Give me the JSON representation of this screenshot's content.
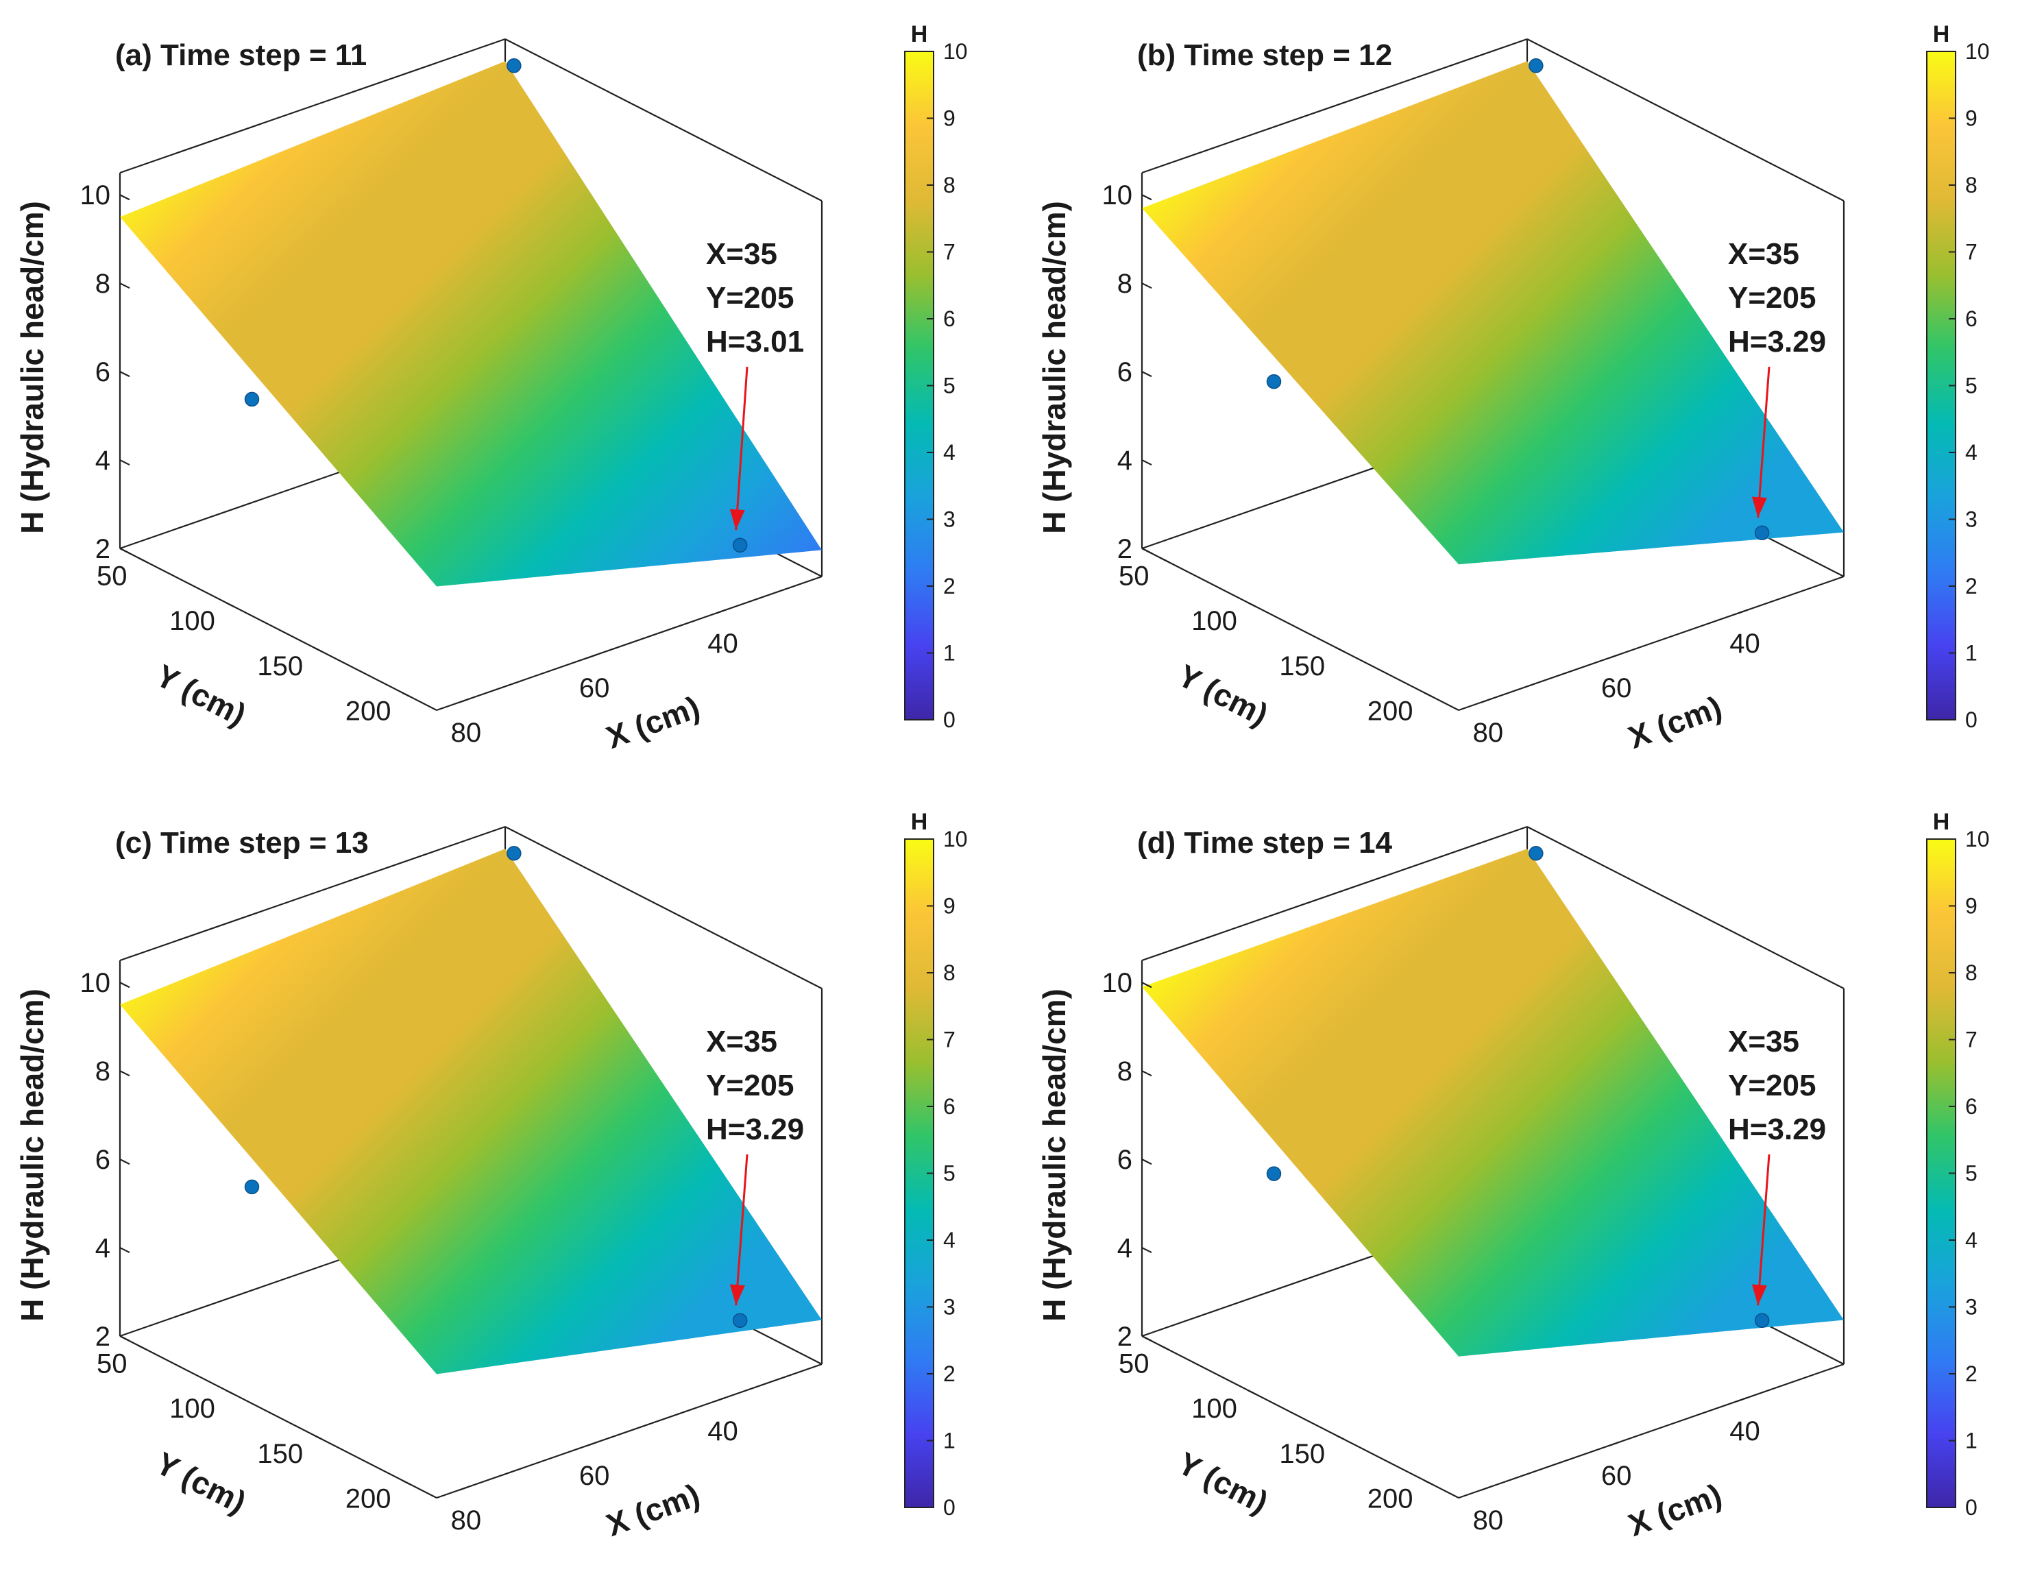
{
  "figure": {
    "colorbar_title": "H",
    "colormap": [
      "#3e26a8",
      "#4743f0",
      "#2f7cf3",
      "#1aa2dc",
      "#04bab3",
      "#31c569",
      "#9bbf2f",
      "#e0b936",
      "#fbc538",
      "#f9fb15"
    ],
    "surface_color_low": "#2aa0f0",
    "marker_color": "#0a72bd",
    "arrow_color": "#e8141c"
  },
  "chart_data": [
    {
      "type": "surface3d",
      "title": "(a) Time step = 11",
      "xlabel": "X (cm)",
      "ylabel": "Y (cm)",
      "zlabel": "H (Hydraulic head/cm)",
      "xlim": [
        25,
        85
      ],
      "ylim": [
        35,
        215
      ],
      "zlim": [
        2,
        10.5
      ],
      "x_ticks": [
        "40",
        "60",
        "80"
      ],
      "y_ticks": [
        "50",
        "100",
        "150",
        "200"
      ],
      "z_ticks": [
        "2",
        "4",
        "6",
        "8",
        "10"
      ],
      "colorbar": {
        "label": "H",
        "range": [
          0,
          10
        ],
        "ticks": [
          "0",
          "1",
          "2",
          "3",
          "4",
          "5",
          "6",
          "7",
          "8",
          "9",
          "10"
        ]
      },
      "surface_corners": [
        {
          "x": 85,
          "y": 35,
          "h": 9.5
        },
        {
          "x": 25,
          "y": 35,
          "h": 10.0
        },
        {
          "x": 25,
          "y": 215,
          "h": 2.6
        },
        {
          "x": 85,
          "y": 215,
          "h": 4.8
        }
      ],
      "points": [
        {
          "x": 25,
          "y": 40,
          "h": 10.0
        },
        {
          "x": 85,
          "y": 110,
          "h": 6.9
        },
        {
          "x": 35,
          "y": 205,
          "h": 3.01
        }
      ],
      "annotation": {
        "lines": [
          "X=35",
          "Y=205",
          "H=3.01"
        ],
        "x": 35,
        "y": 205,
        "h": 3.01
      }
    },
    {
      "type": "surface3d",
      "title": "(b) Time step = 12",
      "xlabel": "X (cm)",
      "ylabel": "Y (cm)",
      "zlabel": "H (Hydraulic head/cm)",
      "xlim": [
        25,
        85
      ],
      "ylim": [
        35,
        215
      ],
      "zlim": [
        2,
        10.5
      ],
      "x_ticks": [
        "40",
        "60",
        "80"
      ],
      "y_ticks": [
        "50",
        "100",
        "150",
        "200"
      ],
      "z_ticks": [
        "2",
        "4",
        "6",
        "8",
        "10"
      ],
      "colorbar": {
        "label": "H",
        "range": [
          0,
          10
        ],
        "ticks": [
          "0",
          "1",
          "2",
          "3",
          "4",
          "5",
          "6",
          "7",
          "8",
          "9",
          "10"
        ]
      },
      "surface_corners": [
        {
          "x": 85,
          "y": 35,
          "h": 9.7
        },
        {
          "x": 25,
          "y": 35,
          "h": 10.0
        },
        {
          "x": 25,
          "y": 215,
          "h": 3.0
        },
        {
          "x": 85,
          "y": 215,
          "h": 5.3
        }
      ],
      "points": [
        {
          "x": 25,
          "y": 40,
          "h": 10.0
        },
        {
          "x": 85,
          "y": 110,
          "h": 7.3
        },
        {
          "x": 35,
          "y": 205,
          "h": 3.29
        }
      ],
      "annotation": {
        "lines": [
          "X=35",
          "Y=205",
          "H=3.29"
        ],
        "x": 35,
        "y": 205,
        "h": 3.29
      }
    },
    {
      "type": "surface3d",
      "title": "(c) Time step = 13",
      "xlabel": "X (cm)",
      "ylabel": "Y (cm)",
      "zlabel": "H (Hydraulic head/cm)",
      "xlim": [
        25,
        85
      ],
      "ylim": [
        35,
        215
      ],
      "zlim": [
        2,
        10.5
      ],
      "x_ticks": [
        "40",
        "60",
        "80"
      ],
      "y_ticks": [
        "50",
        "100",
        "150",
        "200"
      ],
      "z_ticks": [
        "2",
        "4",
        "6",
        "8",
        "10"
      ],
      "colorbar": {
        "label": "H",
        "range": [
          0,
          10
        ],
        "ticks": [
          "0",
          "1",
          "2",
          "3",
          "4",
          "5",
          "6",
          "7",
          "8",
          "9",
          "10"
        ]
      },
      "surface_corners": [
        {
          "x": 85,
          "y": 35,
          "h": 9.5
        },
        {
          "x": 25,
          "y": 35,
          "h": 10.0
        },
        {
          "x": 25,
          "y": 215,
          "h": 3.0
        },
        {
          "x": 85,
          "y": 215,
          "h": 4.8
        }
      ],
      "points": [
        {
          "x": 25,
          "y": 40,
          "h": 10.0
        },
        {
          "x": 85,
          "y": 110,
          "h": 6.9
        },
        {
          "x": 35,
          "y": 205,
          "h": 3.29
        }
      ],
      "annotation": {
        "lines": [
          "X=35",
          "Y=205",
          "H=3.29"
        ],
        "x": 35,
        "y": 205,
        "h": 3.29
      }
    },
    {
      "type": "surface3d",
      "title": "(d) Time step = 14",
      "xlabel": "X (cm)",
      "ylabel": "Y (cm)",
      "zlabel": "H (Hydraulic head/cm)",
      "xlim": [
        25,
        85
      ],
      "ylim": [
        35,
        215
      ],
      "zlim": [
        2,
        10.5
      ],
      "x_ticks": [
        "40",
        "60",
        "80"
      ],
      "y_ticks": [
        "50",
        "100",
        "150",
        "200"
      ],
      "z_ticks": [
        "2",
        "4",
        "6",
        "8",
        "10"
      ],
      "colorbar": {
        "label": "H",
        "range": [
          0,
          10
        ],
        "ticks": [
          "0",
          "1",
          "2",
          "3",
          "4",
          "5",
          "6",
          "7",
          "8",
          "9",
          "10"
        ]
      },
      "surface_corners": [
        {
          "x": 85,
          "y": 35,
          "h": 9.9
        },
        {
          "x": 25,
          "y": 35,
          "h": 10.0
        },
        {
          "x": 25,
          "y": 215,
          "h": 3.0
        },
        {
          "x": 85,
          "y": 215,
          "h": 5.2
        }
      ],
      "points": [
        {
          "x": 25,
          "y": 40,
          "h": 10.0
        },
        {
          "x": 85,
          "y": 110,
          "h": 7.2
        },
        {
          "x": 35,
          "y": 205,
          "h": 3.29
        }
      ],
      "annotation": {
        "lines": [
          "X=35",
          "Y=205",
          "H=3.29"
        ],
        "x": 35,
        "y": 205,
        "h": 3.29
      }
    }
  ]
}
